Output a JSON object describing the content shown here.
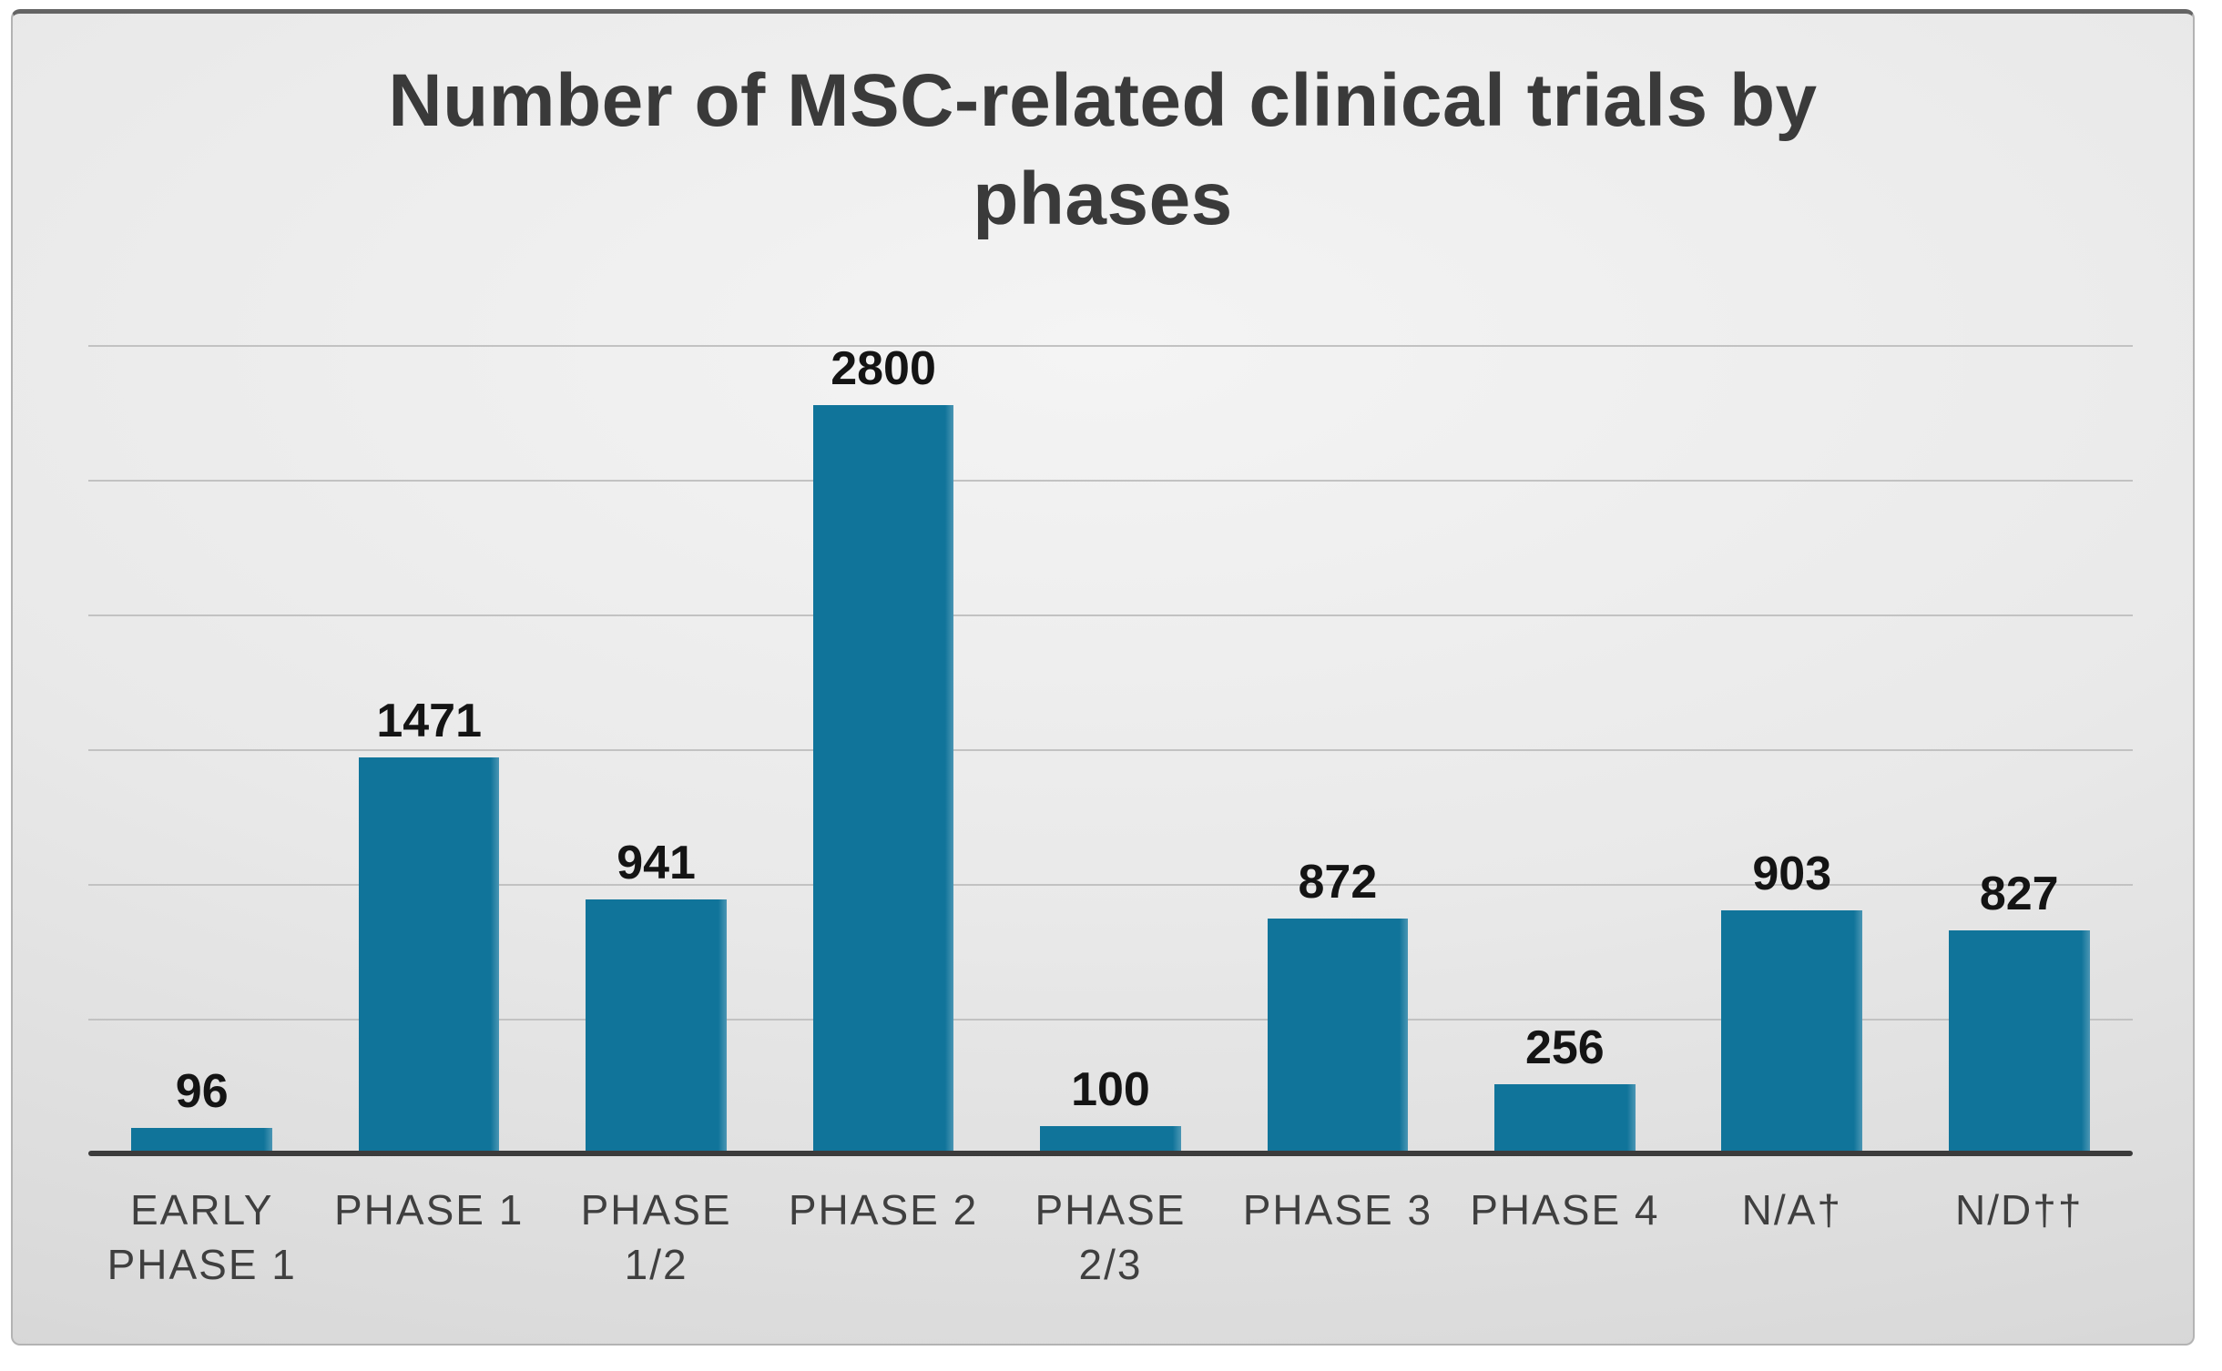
{
  "chart_data": {
    "type": "bar",
    "title": "Number of MSC-related clinical trials by phases",
    "categories": [
      "EARLY PHASE 1",
      "PHASE 1",
      "PHASE 1/2",
      "PHASE 2",
      "PHASE 2/3",
      "PHASE 3",
      "PHASE 4",
      "N/A†",
      "N/D††"
    ],
    "values": [
      96,
      1471,
      941,
      2800,
      100,
      872,
      256,
      903,
      827
    ],
    "xlabel": "",
    "ylabel": "",
    "ylim": [
      0,
      3000
    ],
    "gridlines": [
      500,
      1000,
      1500,
      2000,
      2500,
      3000
    ],
    "grid": "horizontal",
    "legend": "none",
    "y_tick_labels_shown": false,
    "data_labels": "above-bars",
    "colors": {
      "bar": "#10749a",
      "axis_line": "#3b3b3b",
      "gridline": "#c2c2c2",
      "title_text": "#3a3a3a",
      "category_text": "#3f3f3f",
      "value_text": "#141414",
      "panel_background": "#e6e6e6",
      "page_background": "#ffffff"
    }
  }
}
